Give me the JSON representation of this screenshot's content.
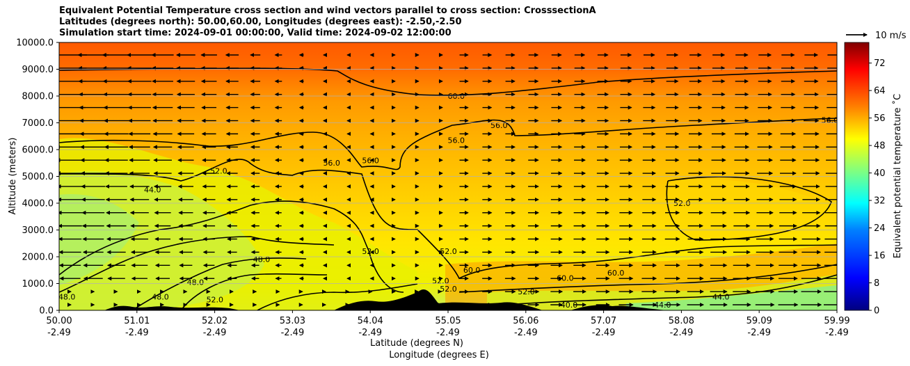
{
  "chart_data": {
    "type": "heatmap",
    "title_lines": [
      "Equivalent Potential Temperature cross section and wind vectors parallel to cross section: CrosssectionA",
      "Latitudes (degrees north): 50.00,60.00, Longitudes (degrees east): -2.50,-2.50",
      "Simulation start time: 2024-09-01 00:00:00, Valid time: 2024-09-02 12:00:00"
    ],
    "ylabel": "Altitude (meters)",
    "xlabel_lat": "Latitude (degrees N)",
    "xlabel_lon": "Longitude (degrees E)",
    "ylim": [
      0,
      10000
    ],
    "yticks": [
      "0.0",
      "1000.0",
      "2000.0",
      "3000.0",
      "4000.0",
      "5000.0",
      "6000.0",
      "7000.0",
      "8000.0",
      "9000.0",
      "10000.0"
    ],
    "xticks": [
      {
        "lat": "50.00",
        "lon": "-2.49"
      },
      {
        "lat": "51.01",
        "lon": "-2.49"
      },
      {
        "lat": "52.02",
        "lon": "-2.49"
      },
      {
        "lat": "53.03",
        "lon": "-2.49"
      },
      {
        "lat": "54.04",
        "lon": "-2.49"
      },
      {
        "lat": "55.05",
        "lon": "-2.49"
      },
      {
        "lat": "56.06",
        "lon": "-2.49"
      },
      {
        "lat": "57.07",
        "lon": "-2.49"
      },
      {
        "lat": "58.08",
        "lon": "-2.49"
      },
      {
        "lat": "59.09",
        "lon": "-2.49"
      },
      {
        "lat": "59.99",
        "lon": "-2.49"
      }
    ],
    "grid": "horizontal",
    "colorbar": {
      "label": "Equivalent potential temperature ˚C",
      "range": [
        0,
        78
      ],
      "ticks": [
        "0",
        "8",
        "16",
        "24",
        "32",
        "40",
        "48",
        "56",
        "64",
        "72"
      ],
      "colormap": "jet"
    },
    "quiver_key": {
      "label": "10 m/s"
    },
    "contour_labels": [
      {
        "text": "60.0",
        "lat": 55.1,
        "alt": 7900
      },
      {
        "text": "56.0",
        "lat": 55.1,
        "alt": 6250
      },
      {
        "text": "56.0",
        "lat": 54.0,
        "alt": 5500
      },
      {
        "text": "56.0",
        "lat": 53.5,
        "alt": 5400
      },
      {
        "text": "56.0",
        "lat": 55.65,
        "alt": 6800
      },
      {
        "text": "56.0",
        "lat": 59.9,
        "alt": 7000
      },
      {
        "text": "52.0",
        "lat": 52.05,
        "alt": 5100
      },
      {
        "text": "52.0",
        "lat": 54.0,
        "alt": 2100
      },
      {
        "text": "52.0",
        "lat": 55.0,
        "alt": 2100
      },
      {
        "text": "52.0",
        "lat": 54.9,
        "alt": 1000
      },
      {
        "text": "52.0",
        "lat": 55.0,
        "alt": 700
      },
      {
        "text": "52.0",
        "lat": 56.0,
        "alt": 600
      },
      {
        "text": "52.0",
        "lat": 52.0,
        "alt": 300
      },
      {
        "text": "52.0",
        "lat": 58.0,
        "alt": 3900
      },
      {
        "text": "44.0",
        "lat": 51.2,
        "alt": 4400
      },
      {
        "text": "48.0",
        "lat": 52.6,
        "alt": 1800
      },
      {
        "text": "48.0",
        "lat": 51.75,
        "alt": 950
      },
      {
        "text": "48.0",
        "lat": 50.1,
        "alt": 400
      },
      {
        "text": "48.0",
        "lat": 51.3,
        "alt": 400
      },
      {
        "text": "44.0",
        "lat": 58.5,
        "alt": 400
      },
      {
        "text": "44.0",
        "lat": 57.75,
        "alt": 100
      },
      {
        "text": "40.0",
        "lat": 56.55,
        "alt": 100
      },
      {
        "text": "60.0",
        "lat": 55.3,
        "alt": 1400
      },
      {
        "text": "60.0",
        "lat": 56.5,
        "alt": 1100
      },
      {
        "text": "60.0",
        "lat": 57.15,
        "alt": 1300
      }
    ]
  }
}
